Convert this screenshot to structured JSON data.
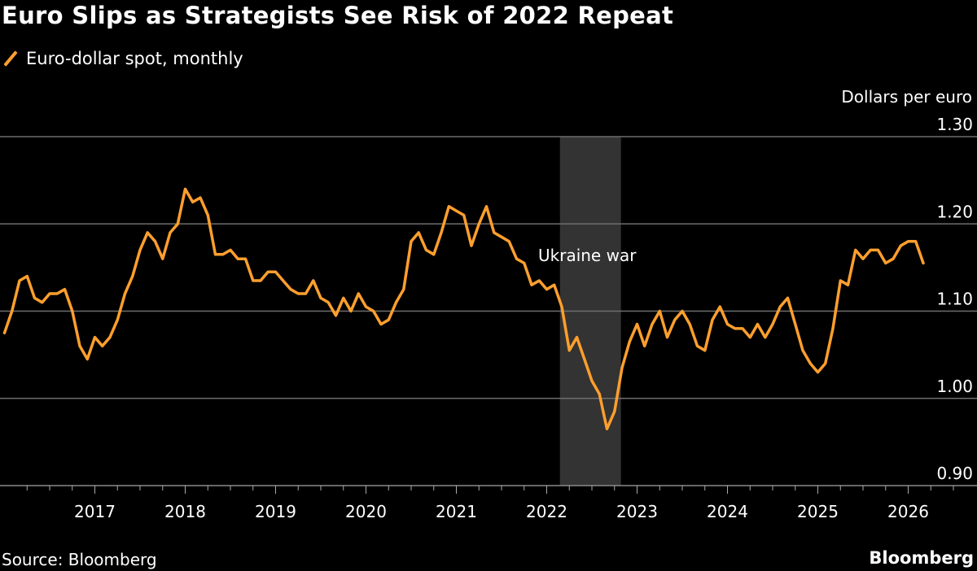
{
  "title": "Euro Slips as Strategists See Risk of 2022 Repeat",
  "legend_label": "Euro-dollar spot, monthly",
  "source": "Source: Bloomberg",
  "brand": "Bloomberg",
  "colors": {
    "series": "#ff9f2d",
    "background": "#000000",
    "grid": "#6e6e6e",
    "shade": "#333333"
  },
  "chart_data": {
    "type": "line",
    "title": "Euro Slips as Strategists See Risk of 2022 Repeat",
    "ylabel": "Dollars per euro",
    "xlabel": "",
    "ylim": [
      0.9,
      1.3
    ],
    "yticks": [
      "0.90",
      "1.00",
      "1.10",
      "1.20",
      "1.30"
    ],
    "xticks": [
      "2017",
      "2018",
      "2019",
      "2020",
      "2021",
      "2022",
      "2023",
      "2024",
      "2025",
      "2026"
    ],
    "grid": true,
    "y_axis_side": "right",
    "annotations": [
      {
        "label": "Ukraine war",
        "shade_start": "2022-02-24",
        "shade_end": "2022-10-27"
      }
    ],
    "series": [
      {
        "name": "Euro-dollar spot, monthly",
        "x": [
          "2016-01",
          "2016-02",
          "2016-03",
          "2016-04",
          "2016-05",
          "2016-06",
          "2016-07",
          "2016-08",
          "2016-09",
          "2016-10",
          "2016-11",
          "2016-12",
          "2017-01",
          "2017-02",
          "2017-03",
          "2017-04",
          "2017-05",
          "2017-06",
          "2017-07",
          "2017-08",
          "2017-09",
          "2017-10",
          "2017-11",
          "2017-12",
          "2018-01",
          "2018-02",
          "2018-03",
          "2018-04",
          "2018-05",
          "2018-06",
          "2018-07",
          "2018-08",
          "2018-09",
          "2018-10",
          "2018-11",
          "2018-12",
          "2019-01",
          "2019-02",
          "2019-03",
          "2019-04",
          "2019-05",
          "2019-06",
          "2019-07",
          "2019-08",
          "2019-09",
          "2019-10",
          "2019-11",
          "2019-12",
          "2020-01",
          "2020-02",
          "2020-03",
          "2020-04",
          "2020-05",
          "2020-06",
          "2020-07",
          "2020-08",
          "2020-09",
          "2020-10",
          "2020-11",
          "2020-12",
          "2021-01",
          "2021-02",
          "2021-03",
          "2021-04",
          "2021-05",
          "2021-06",
          "2021-07",
          "2021-08",
          "2021-09",
          "2021-10",
          "2021-11",
          "2021-12",
          "2022-01",
          "2022-02",
          "2022-03",
          "2022-04",
          "2022-05",
          "2022-06",
          "2022-07",
          "2022-08",
          "2022-09",
          "2022-10",
          "2022-11",
          "2022-12",
          "2023-01",
          "2023-02",
          "2023-03",
          "2023-04",
          "2023-05",
          "2023-06",
          "2023-07",
          "2023-08",
          "2023-09",
          "2023-10",
          "2023-11",
          "2023-12",
          "2024-01",
          "2024-02",
          "2024-03",
          "2024-04",
          "2024-05",
          "2024-06",
          "2024-07",
          "2024-08",
          "2024-09",
          "2024-10",
          "2024-11",
          "2024-12",
          "2025-01",
          "2025-02",
          "2025-03",
          "2025-04",
          "2025-05",
          "2025-06",
          "2025-07",
          "2025-08",
          "2025-09",
          "2025-10",
          "2025-11",
          "2025-12",
          "2026-01",
          "2026-02",
          "2026-03"
        ],
        "values": [
          1.075,
          1.1,
          1.135,
          1.14,
          1.115,
          1.11,
          1.12,
          1.12,
          1.125,
          1.1,
          1.06,
          1.045,
          1.07,
          1.06,
          1.07,
          1.09,
          1.12,
          1.14,
          1.17,
          1.19,
          1.18,
          1.16,
          1.19,
          1.2,
          1.24,
          1.225,
          1.23,
          1.21,
          1.165,
          1.165,
          1.17,
          1.16,
          1.16,
          1.135,
          1.135,
          1.145,
          1.145,
          1.135,
          1.125,
          1.12,
          1.12,
          1.135,
          1.115,
          1.11,
          1.095,
          1.115,
          1.1,
          1.12,
          1.105,
          1.1,
          1.085,
          1.09,
          1.11,
          1.125,
          1.18,
          1.19,
          1.17,
          1.165,
          1.19,
          1.22,
          1.215,
          1.21,
          1.175,
          1.2,
          1.22,
          1.19,
          1.185,
          1.18,
          1.16,
          1.155,
          1.13,
          1.135,
          1.125,
          1.13,
          1.105,
          1.055,
          1.07,
          1.045,
          1.02,
          1.005,
          0.965,
          0.985,
          1.035,
          1.065,
          1.085,
          1.06,
          1.085,
          1.1,
          1.07,
          1.09,
          1.1,
          1.085,
          1.06,
          1.055,
          1.09,
          1.105,
          1.085,
          1.08,
          1.08,
          1.07,
          1.085,
          1.07,
          1.085,
          1.105,
          1.115,
          1.085,
          1.055,
          1.04,
          1.03,
          1.04,
          1.08,
          1.135,
          1.13,
          1.17,
          1.16,
          1.17,
          1.17,
          1.155,
          1.16,
          1.175,
          1.18,
          1.18,
          1.155
        ]
      }
    ]
  }
}
